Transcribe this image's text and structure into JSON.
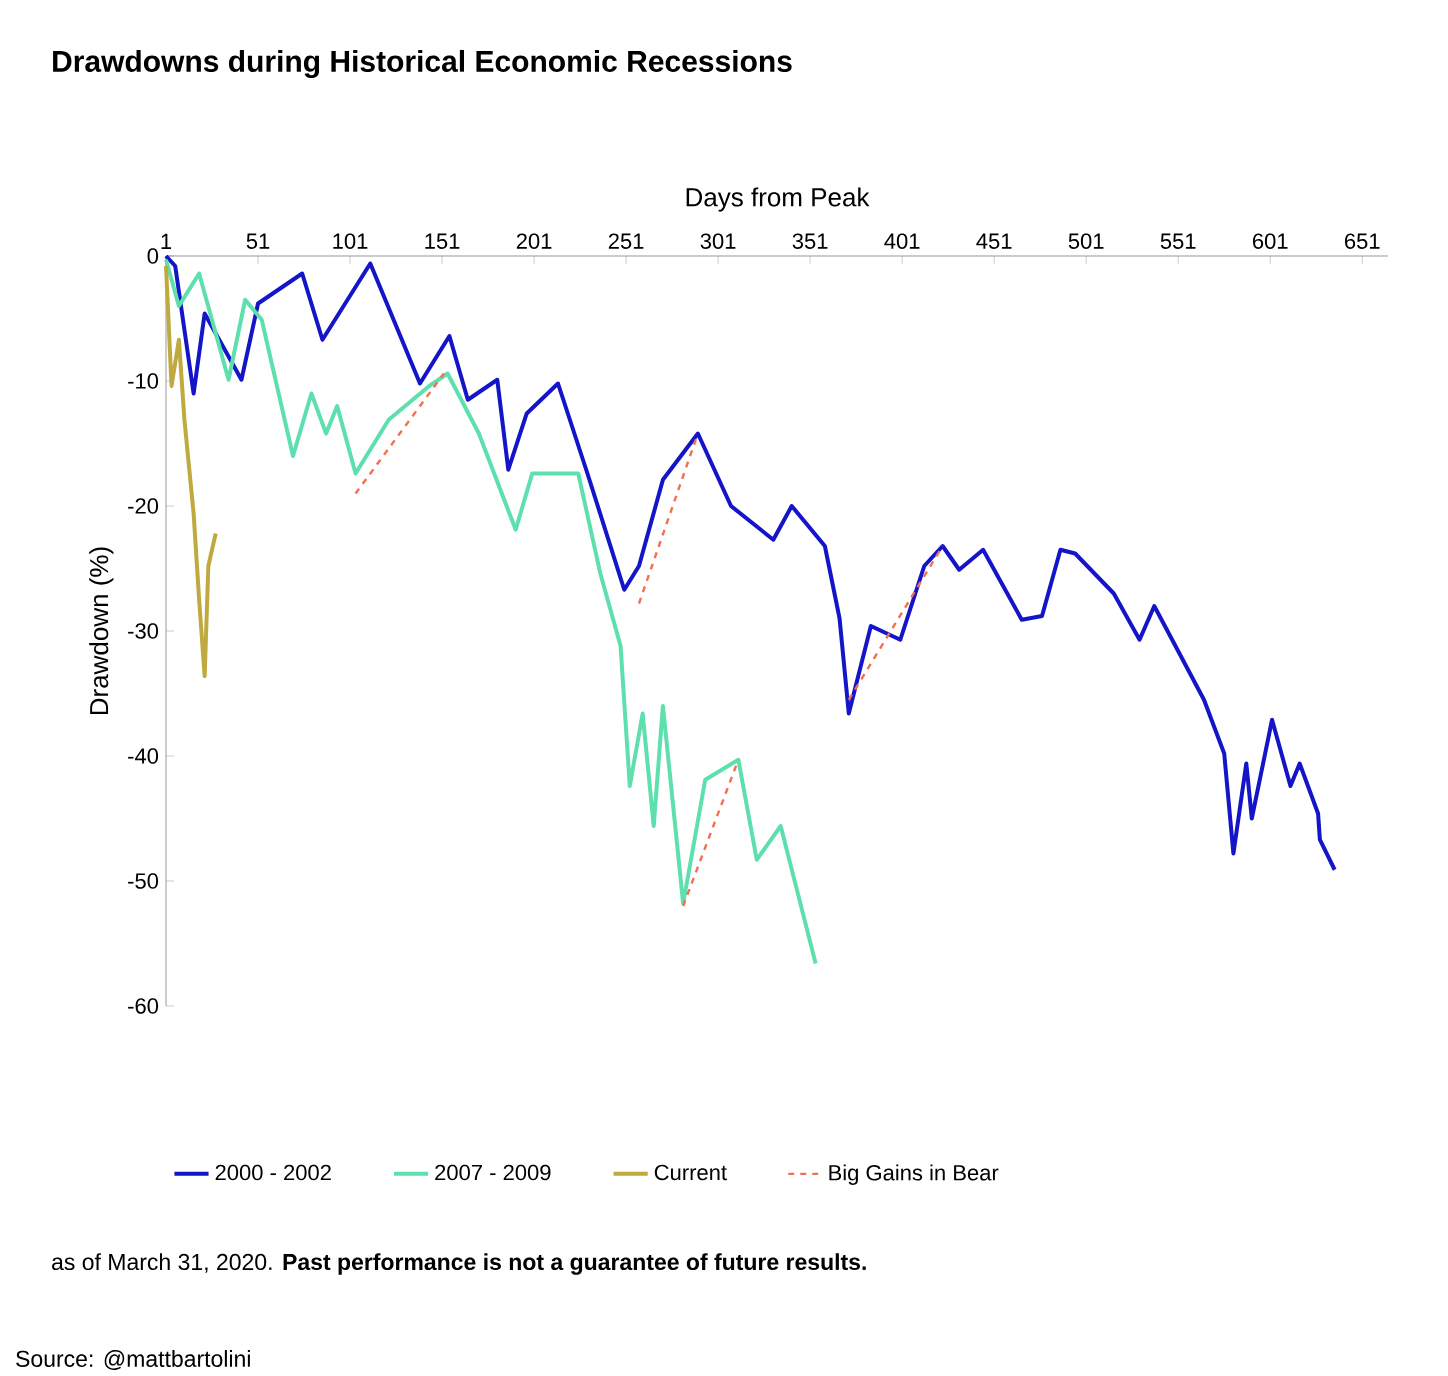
{
  "chart_data": {
    "type": "line",
    "title": "Drawdowns during Historical Economic Recessions",
    "xlabel": "Days from Peak",
    "ylabel": "Drawdown (%)",
    "xlim": [
      1,
      665
    ],
    "xticks": [
      1,
      51,
      101,
      151,
      201,
      251,
      301,
      351,
      401,
      451,
      501,
      551,
      601,
      651
    ],
    "ylim": [
      -60,
      0
    ],
    "yticks": [
      0,
      -10,
      -20,
      -30,
      -40,
      -50,
      -60
    ],
    "marker": "none",
    "line_style": "solid",
    "legend": "bottom",
    "grid": false,
    "series": [
      {
        "name": "2000 - 2002",
        "color": "#1414c8",
        "x": [
          1,
          6,
          16,
          22,
          42,
          51,
          75,
          86,
          112,
          139,
          155,
          165,
          181,
          187,
          197,
          214,
          230,
          250,
          258,
          271,
          290,
          308,
          331,
          341,
          359,
          367,
          372,
          384,
          400,
          413,
          423,
          432,
          445,
          466,
          477,
          487,
          495,
          516,
          530,
          538,
          565,
          576,
          581,
          588,
          591,
          602,
          612,
          617,
          627,
          628,
          636
        ],
        "values": [
          0,
          -0.8,
          -11,
          -4.6,
          -9.9,
          -3.8,
          -1.4,
          -6.7,
          -0.6,
          -10.2,
          -6.4,
          -11.5,
          -9.9,
          -17.1,
          -12.6,
          -10.2,
          -17.4,
          -26.7,
          -24.8,
          -17.9,
          -14.2,
          -20,
          -22.7,
          -20,
          -23.2,
          -29,
          -36.6,
          -29.6,
          -30.7,
          -24.8,
          -23.2,
          -25.1,
          -23.5,
          -29.1,
          -28.8,
          -23.5,
          -23.8,
          -27,
          -30.7,
          -28,
          -35.5,
          -39.8,
          -47.8,
          -40.6,
          -45,
          -37.1,
          -42.4,
          -40.6,
          -44.6,
          -46.7,
          -49.1
        ]
      },
      {
        "name": "2007 - 2009",
        "color": "#5ee0ae",
        "x": [
          1,
          8,
          19,
          35,
          44,
          53,
          70,
          80,
          88,
          94,
          104,
          122,
          144,
          154,
          171,
          191,
          200,
          214,
          225,
          237,
          248,
          253,
          260,
          266,
          271,
          282,
          294,
          312,
          322,
          335,
          354
        ],
        "values": [
          -0.3,
          -4,
          -1.4,
          -9.9,
          -3.5,
          -5.1,
          -16,
          -11,
          -14.2,
          -12,
          -17.4,
          -13.1,
          -10.4,
          -9.4,
          -14.2,
          -21.9,
          -17.4,
          -17.4,
          -17.4,
          -25.4,
          -31.2,
          -42.4,
          -36.6,
          -45.6,
          -36,
          -51.8,
          -41.9,
          -40.3,
          -48.3,
          -45.6,
          -56.6
        ]
      },
      {
        "name": "Current",
        "color": "#c0aa40",
        "x": [
          1,
          4,
          8,
          11,
          16,
          19,
          22,
          24,
          28
        ],
        "values": [
          -0.8,
          -10.4,
          -6.7,
          -13.1,
          -20.6,
          -27.5,
          -33.6,
          -24.8,
          -22.2
        ]
      },
      {
        "name": "Big Gains in Bear",
        "color": "#f07050",
        "line_style": "dashed",
        "x": [
          104,
          152,
          null,
          258,
          290,
          null,
          282,
          312,
          null,
          372,
          423
        ],
        "values": [
          -19,
          -9.4,
          null,
          -27.8,
          -14.2,
          null,
          -52,
          -40.3,
          null,
          -35.5,
          -23.2
        ]
      }
    ],
    "annotations": [
      "as of March 31, 2020. **Past performance is not a guarantee of future results.**",
      "Source: @mattbartolini"
    ]
  }
}
